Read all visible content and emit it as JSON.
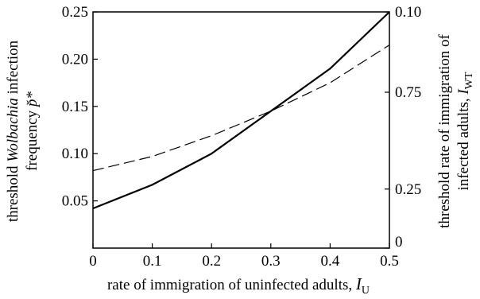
{
  "chart_data": {
    "type": "line",
    "x_label": {
      "text": "rate of immigration of uninfected adults, ",
      "symbol": "I",
      "subscript": "U"
    },
    "y_label": {
      "line1": [
        "threshold ",
        "Wolbachia",
        " infection"
      ],
      "line2": [
        "frequency ",
        "p̆*"
      ]
    },
    "y2_label": {
      "line1": "threshold rate of immigration of",
      "line2": [
        "infected adults, ",
        "I",
        "WT"
      ]
    },
    "x": [
      0,
      0.1,
      0.2,
      0.3,
      0.4,
      0.5
    ],
    "series": [
      {
        "color": "#000000",
        "dash": false,
        "values": [
          0.042,
          0.067,
          0.1,
          0.145,
          0.19,
          0.25
        ]
      },
      {
        "color": "#000000",
        "dash": true,
        "values": [
          0.082,
          0.097,
          0.119,
          0.145,
          0.175,
          0.215
        ]
      }
    ],
    "xlim": [
      0,
      0.5
    ],
    "xticks": [
      0,
      0.1,
      0.2,
      0.3,
      0.4,
      0.5
    ],
    "ylim": [
      0,
      0.25
    ],
    "yticks": [
      0.05,
      {
        "value": 0.1,
        "label": "0.10"
      },
      0.15,
      {
        "value": 0.2,
        "label": "0.20"
      },
      0.25
    ],
    "y2lim": [
      0,
      1
    ],
    "y2ticks": [
      0,
      0.25,
      {
        "value": 0.66,
        "label": "0.75"
      },
      {
        "value": 1,
        "label": "0.10"
      }
    ],
    "grid": false
  }
}
